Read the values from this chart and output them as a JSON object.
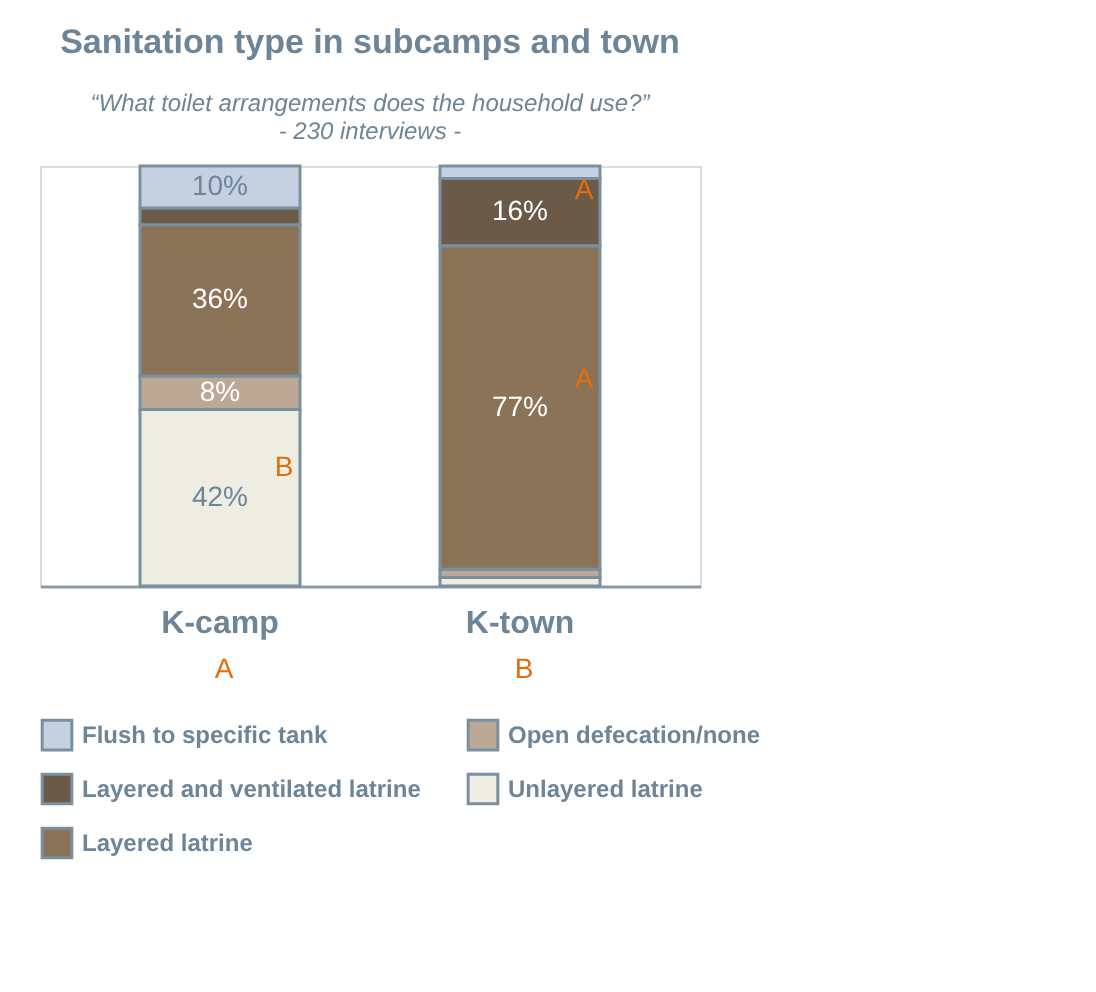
{
  "chart_data": {
    "type": "bar",
    "title": "Sanitation type in subcamps and town",
    "subtitle": "“What toilet arrangements does the household use?”\n- 230 interviews -",
    "categories": [
      "K-camp",
      "K-town"
    ],
    "stacked": true,
    "ylim": [
      0,
      100
    ],
    "tick_labels": "x",
    "legend": "bottom",
    "series": [
      {
        "name": "Unlayered latrine",
        "color": "#eeede2",
        "values": [
          42,
          2
        ],
        "value_labels": [
          "42%",
          null
        ]
      },
      {
        "name": "Open defecation/none",
        "color": "#bba996",
        "values": [
          8,
          2
        ],
        "value_labels": [
          "8%",
          null
        ]
      },
      {
        "name": "Layered latrine",
        "color": "#8b7358",
        "values": [
          36,
          77
        ],
        "value_labels": [
          "36%",
          "77%"
        ]
      },
      {
        "name": "Layered and ventilated latrine",
        "color": "#6b5a47",
        "values": [
          4,
          16
        ],
        "value_labels": [
          null,
          "16%"
        ]
      },
      {
        "name": "Flush to specific tank",
        "color": "#c5d0e0",
        "values": [
          10,
          3
        ],
        "value_labels": [
          "10%",
          null
        ]
      }
    ],
    "annotations": [
      "B",
      "A",
      "A",
      "A",
      "B"
    ]
  }
}
